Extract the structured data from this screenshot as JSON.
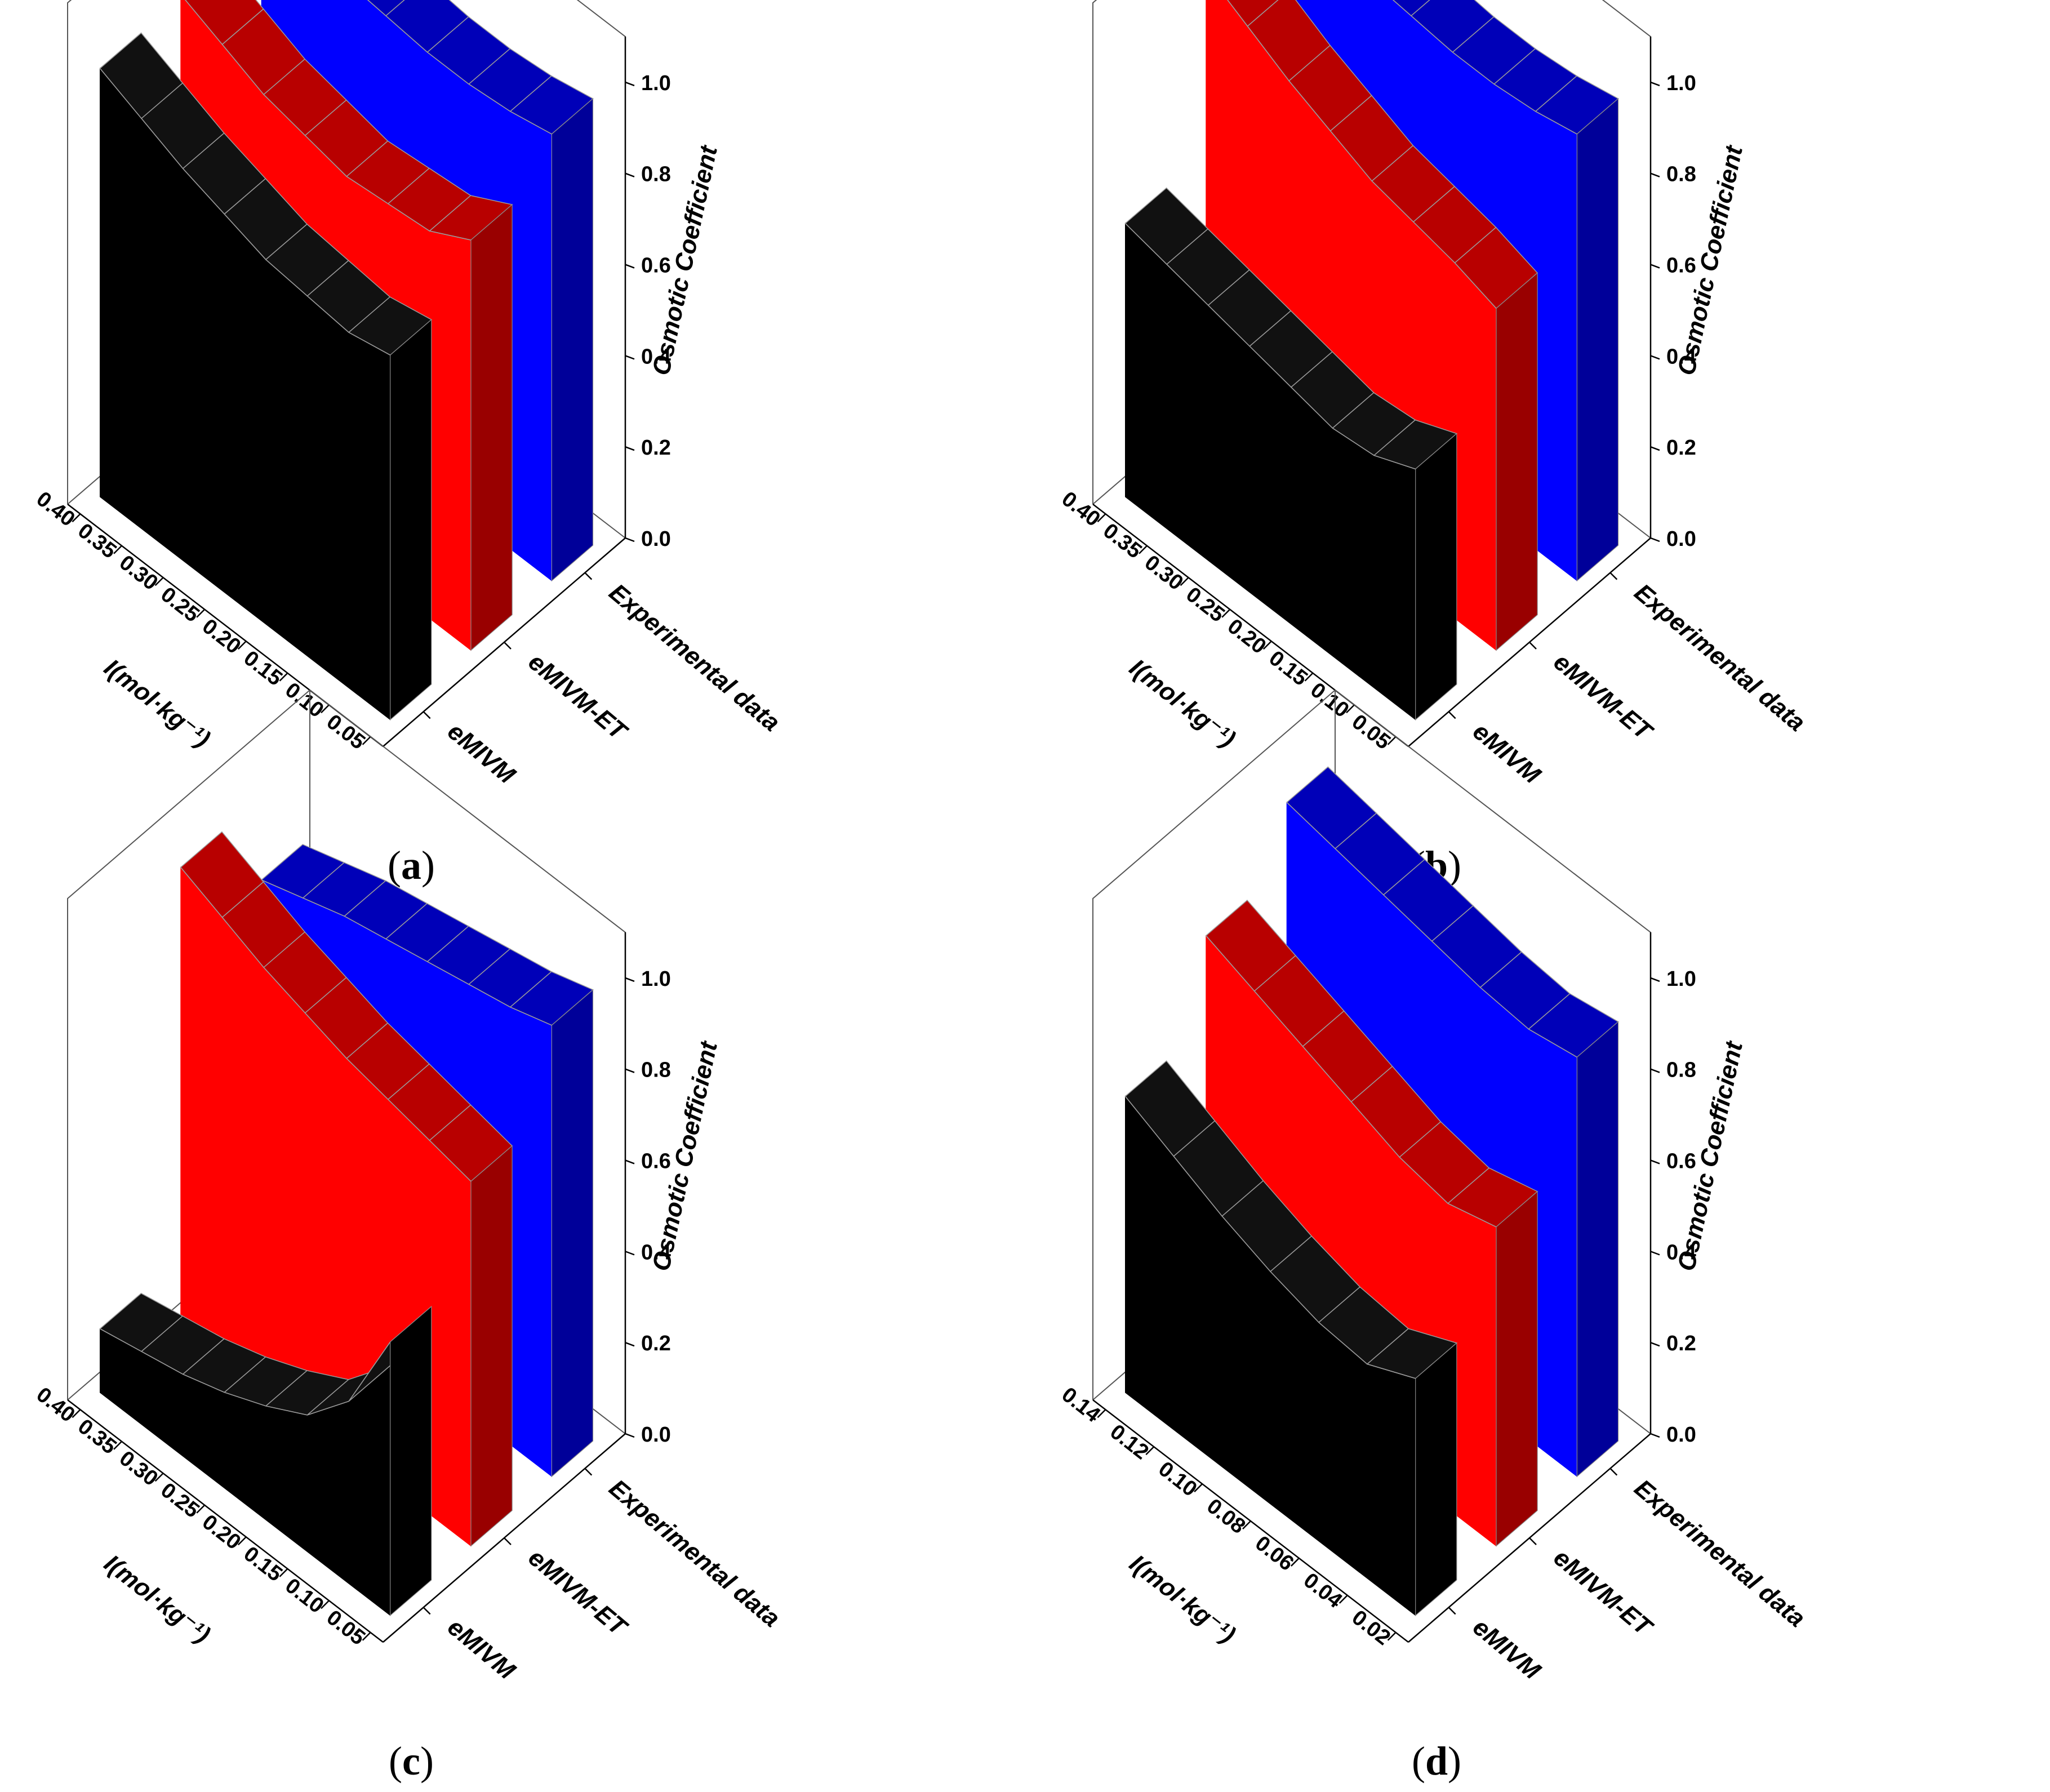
{
  "figure": {
    "panels": [
      "a",
      "b",
      "c",
      "d"
    ]
  },
  "chart_data": [
    {
      "panel": "a",
      "caption": "(a)",
      "type": "3d-wall",
      "xlabel": "I(mol·kg⁻¹)",
      "zlabel": "Osmotic Coefficient",
      "x_ticks": [
        "0.40",
        "0.35",
        "0.30",
        "0.25",
        "0.20",
        "0.15",
        "0.10",
        "0.05"
      ],
      "z_ticks": [
        "0.0",
        "0.2",
        "0.4",
        "0.6",
        "0.8",
        "1.0"
      ],
      "x": [
        0.4,
        0.35,
        0.3,
        0.25,
        0.2,
        0.15,
        0.1,
        0.05
      ],
      "zlim": [
        0,
        1.1
      ],
      "series": [
        {
          "name": "eMIVM",
          "color": "#000000",
          "values": [
            0.94,
            0.9,
            0.86,
            0.83,
            0.8,
            0.79,
            0.78,
            0.8
          ]
        },
        {
          "name": "eMIVM-ET",
          "color": "#ff0000",
          "values": [
            0.95,
            0.91,
            0.87,
            0.85,
            0.83,
            0.84,
            0.85,
            0.9
          ]
        },
        {
          "name": "Experimental data",
          "color": "#0000ff",
          "values": [
            0.99,
            0.98,
            0.97,
            0.96,
            0.95,
            0.95,
            0.96,
            0.98
          ]
        }
      ]
    },
    {
      "panel": "b",
      "caption": "(b)",
      "type": "3d-wall",
      "xlabel": "I(mol·kg⁻¹)",
      "zlabel": "Osmotic Coefficient",
      "x_ticks": [
        "0.40",
        "0.35",
        "0.30",
        "0.25",
        "0.20",
        "0.15",
        "0.10",
        "0.05"
      ],
      "z_ticks": [
        "0.0",
        "0.2",
        "0.4",
        "0.6",
        "0.8",
        "1.0"
      ],
      "x": [
        0.4,
        0.35,
        0.3,
        0.25,
        0.2,
        0.15,
        0.1,
        0.05
      ],
      "zlim": [
        0,
        1.1
      ],
      "series": [
        {
          "name": "eMIVM",
          "color": "#000000",
          "values": [
            0.6,
            0.58,
            0.56,
            0.54,
            0.52,
            0.5,
            0.51,
            0.55
          ]
        },
        {
          "name": "eMIVM-ET",
          "color": "#ff0000",
          "values": [
            1.0,
            0.95,
            0.9,
            0.86,
            0.82,
            0.8,
            0.78,
            0.75
          ]
        },
        {
          "name": "Experimental data",
          "color": "#0000ff",
          "values": [
            0.99,
            0.98,
            0.97,
            0.96,
            0.95,
            0.95,
            0.96,
            0.98
          ]
        }
      ]
    },
    {
      "panel": "c",
      "caption": "(c)",
      "type": "3d-wall",
      "xlabel": "I(mol·kg⁻¹)",
      "zlabel": "Osmotic Coefficient",
      "x_ticks": [
        "0.40",
        "0.35",
        "0.30",
        "0.25",
        "0.20",
        "0.15",
        "0.10",
        "0.05"
      ],
      "z_ticks": [
        "0.0",
        "0.2",
        "0.4",
        "0.6",
        "0.8",
        "1.0"
      ],
      "x": [
        0.4,
        0.35,
        0.3,
        0.25,
        0.2,
        0.15,
        0.1,
        0.05
      ],
      "zlim": [
        0,
        1.1
      ],
      "series": [
        {
          "name": "eMIVM",
          "color": "#000000",
          "values": [
            0.14,
            0.16,
            0.18,
            0.21,
            0.25,
            0.3,
            0.4,
            0.6
          ]
        },
        {
          "name": "eMIVM-ET",
          "color": "#ff0000",
          "values": [
            1.0,
            0.96,
            0.92,
            0.89,
            0.86,
            0.84,
            0.82,
            0.8
          ]
        },
        {
          "name": "Experimental data",
          "color": "#0000ff",
          "values": [
            0.82,
            0.85,
            0.88,
            0.9,
            0.92,
            0.94,
            0.96,
            0.99
          ]
        }
      ]
    },
    {
      "panel": "d",
      "caption": "(d)",
      "type": "3d-wall",
      "xlabel": "I(mol·kg⁻¹)",
      "zlabel": "Osmotic Coefficient",
      "x_ticks": [
        "0.14",
        "0.12",
        "0.10",
        "0.08",
        "0.06",
        "0.04",
        "0.02"
      ],
      "z_ticks": [
        "0.0",
        "0.2",
        "0.4",
        "0.6",
        "0.8",
        "1.0"
      ],
      "x": [
        0.14,
        0.12,
        0.1,
        0.08,
        0.06,
        0.04,
        0.02
      ],
      "zlim": [
        0,
        1.1
      ],
      "series": [
        {
          "name": "eMIVM",
          "color": "#000000",
          "values": [
            0.65,
            0.6,
            0.55,
            0.51,
            0.48,
            0.47,
            0.52
          ]
        },
        {
          "name": "eMIVM-ET",
          "color": "#ff0000",
          "values": [
            0.85,
            0.81,
            0.77,
            0.73,
            0.69,
            0.67,
            0.7
          ]
        },
        {
          "name": "Experimental data",
          "color": "#0000ff",
          "values": [
            0.99,
            0.97,
            0.95,
            0.93,
            0.91,
            0.9,
            0.92
          ]
        }
      ]
    }
  ]
}
